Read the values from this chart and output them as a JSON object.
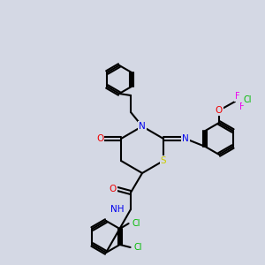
{
  "bg_color": "#d4d8e4",
  "bond_color": "#000000",
  "bond_lw": 1.5,
  "atom_colors": {
    "N": "#0000ee",
    "O": "#ee0000",
    "S": "#cccc00",
    "Cl_green": "#00bb00",
    "F": "#ee00ee",
    "H": "#4444aa",
    "C": "#000000"
  },
  "figsize": [
    3.0,
    3.0
  ],
  "dpi": 100
}
